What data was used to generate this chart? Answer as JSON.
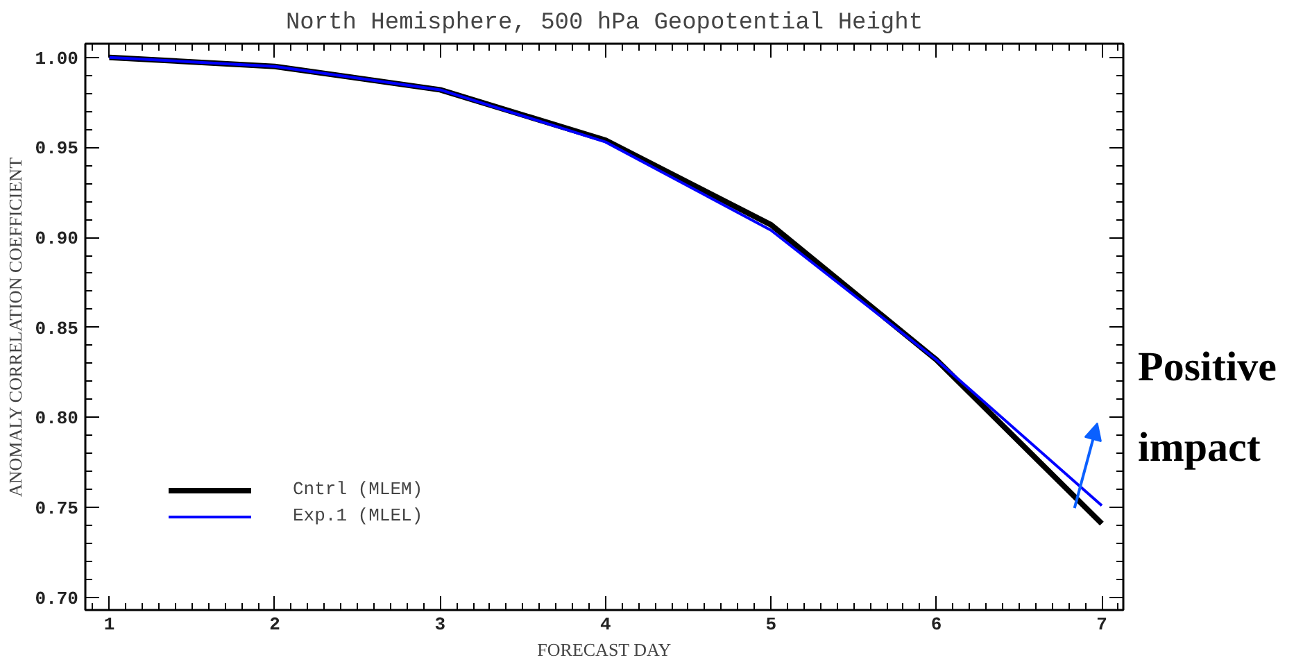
{
  "chart_data": {
    "type": "line",
    "title": "North Hemisphere, 500 hPa Geopotential Height",
    "xlabel": "FORECAST DAY",
    "ylabel": "ANOMALY CORRELATION COEFFICIENT",
    "x": [
      1,
      2,
      3,
      4,
      5,
      6,
      7
    ],
    "series": [
      {
        "name": "Cntrl (MLEM)",
        "color": "#000000",
        "values": [
          1.0,
          0.995,
          0.982,
          0.954,
          0.907,
          0.832,
          0.741
        ]
      },
      {
        "name": "Exp.1 (MLEL)",
        "color": "#0000ff",
        "values": [
          1.0,
          0.995,
          0.982,
          0.953,
          0.904,
          0.832,
          0.751
        ]
      }
    ],
    "xlim": [
      0.855,
      7.13
    ],
    "ylim": [
      0.693,
      1.0076
    ],
    "xticks": [
      1,
      2,
      3,
      4,
      5,
      6,
      7
    ],
    "yticks": [
      {
        "value": 0.7,
        "label": "0.70"
      },
      {
        "value": 0.75,
        "label": "0.75"
      },
      {
        "value": 0.8,
        "label": "0.80"
      },
      {
        "value": 0.85,
        "label": "0.85"
      },
      {
        "value": 0.9,
        "label": "0.90"
      },
      {
        "value": 0.95,
        "label": "0.95"
      },
      {
        "value": 1.0,
        "label": "1.00"
      }
    ],
    "annotations": [
      "Positive impact"
    ],
    "grid": false,
    "legend": "bottom left",
    "marker": "none",
    "line_style": "solid"
  }
}
